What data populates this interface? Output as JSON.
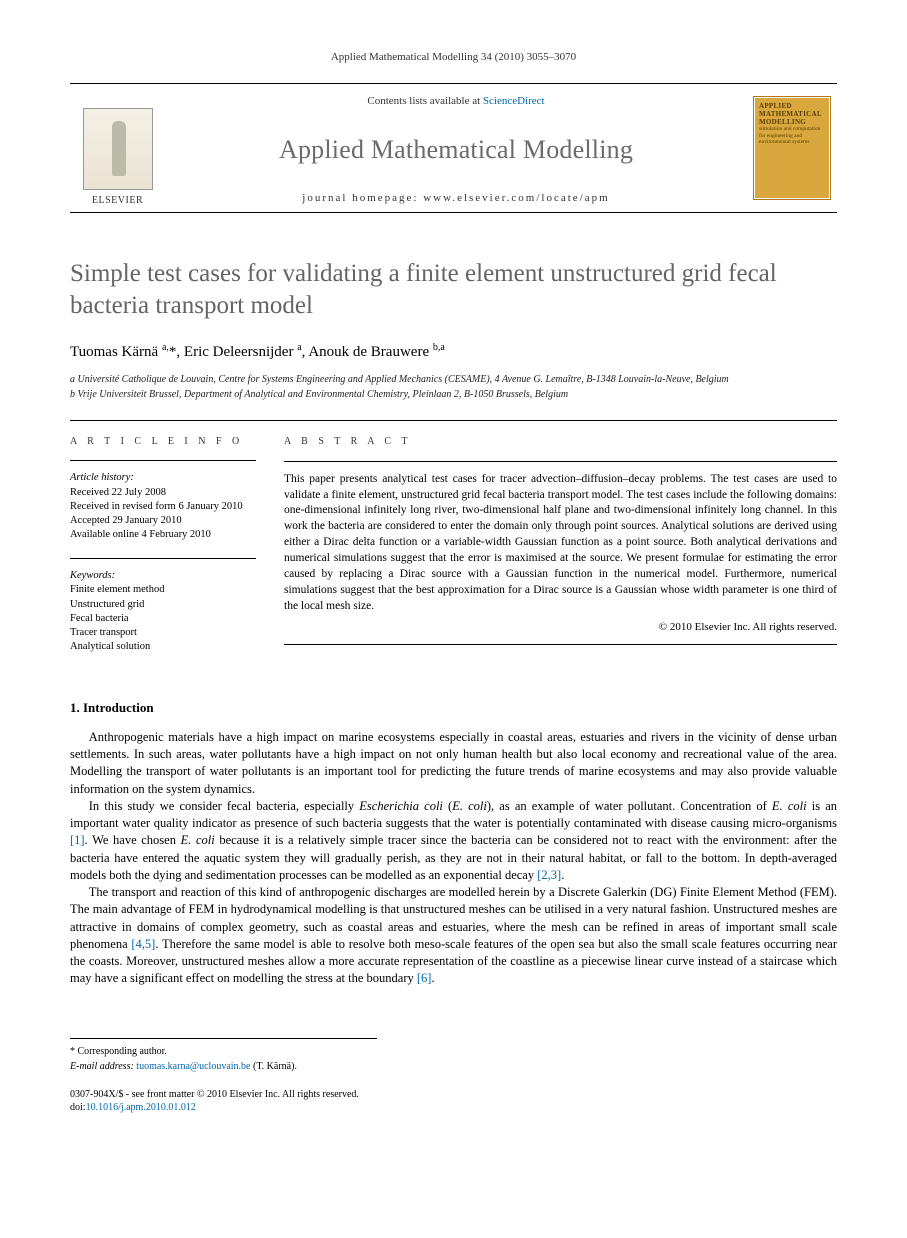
{
  "running_head": "Applied Mathematical Modelling 34 (2010) 3055–3070",
  "masthead": {
    "contents_prefix": "Contents lists available at ",
    "contents_link": "ScienceDirect",
    "publisher": "ELSEVIER",
    "journal": "Applied Mathematical Modelling",
    "homepage_label": "journal homepage: www.elsevier.com/locate/apm",
    "cover": {
      "title": "APPLIED MATHEMATICAL MODELLING",
      "subtitle": "simulation and computation for engineering and environmental systems"
    }
  },
  "article": {
    "title": "Simple test cases for validating a finite element unstructured grid fecal bacteria transport model",
    "authors_html": "Tuomas Kärnä <sup>a,</sup>*, Eric Deleersnijder <sup>a</sup>, Anouk de Brauwere <sup>b,a</sup>",
    "affiliations": [
      "a Université Catholique de Louvain, Centre for Systems Engineering and Applied Mechanics (CESAME), 4 Avenue G. Lemaître, B-1348 Louvain-la-Neuve, Belgium",
      "b Vrije Universiteit Brussel, Department of Analytical and Environmental Chemistry, Pleinlaan 2, B-1050 Brussels, Belgium"
    ]
  },
  "info": {
    "label": "A R T I C L E   I N F O",
    "history_label": "Article history:",
    "history": [
      "Received 22 July 2008",
      "Received in revised form 6 January 2010",
      "Accepted 29 January 2010",
      "Available online 4 February 2010"
    ],
    "keywords_label": "Keywords:",
    "keywords": [
      "Finite element method",
      "Unstructured grid",
      "Fecal bacteria",
      "Tracer transport",
      "Analytical solution"
    ]
  },
  "abstract": {
    "label": "A B S T R A C T",
    "text": "This paper presents analytical test cases for tracer advection–diffusion–decay problems. The test cases are used to validate a finite element, unstructured grid fecal bacteria transport model. The test cases include the following domains: one-dimensional infinitely long river, two-dimensional half plane and two-dimensional infinitely long channel. In this work the bacteria are considered to enter the domain only through point sources. Analytical solutions are derived using either a Dirac delta function or a variable-width Gaussian function as a point source. Both analytical derivations and numerical simulations suggest that the error is maximised at the source. We present formulae for estimating the error caused by replacing a Dirac source with a Gaussian function in the numerical model. Furthermore, numerical simulations suggest that the best approximation for a Dirac source is a Gaussian whose width parameter is one third of the local mesh size.",
    "copyright": "© 2010 Elsevier Inc. All rights reserved."
  },
  "section1": {
    "heading": "1. Introduction",
    "p1": "Anthropogenic materials have a high impact on marine ecosystems especially in coastal areas, estuaries and rivers in the vicinity of dense urban settlements. In such areas, water pollutants have a high impact on not only human health but also local economy and recreational value of the area. Modelling the transport of water pollutants is an important tool for predicting the future trends of marine ecosystems and may also provide valuable information on the system dynamics.",
    "p2_html": "In this study we consider fecal bacteria, especially <em>Escherichia coli</em> (<em>E. coli</em>), as an example of water pollutant. Concentration of <em>E. coli</em> is an important water quality indicator as presence of such bacteria suggests that the water is potentially contaminated with disease causing micro-organisms <a href=\"#\">[1]</a>. We have chosen <em>E. coli</em> because it is a relatively simple tracer since the bacteria can be considered not to react with the environment: after the bacteria have entered the aquatic system they will gradually perish, as they are not in their natural habitat, or fall to the bottom. In depth-averaged models both the dying and sedimentation processes can be modelled as an exponential decay <a href=\"#\">[2,3]</a>.",
    "p3_html": "The transport and reaction of this kind of anthropogenic discharges are modelled herein by a Discrete Galerkin (DG) Finite Element Method (FEM). The main advantage of FEM in hydrodynamical modelling is that unstructured meshes can be utilised in a very natural fashion. Unstructured meshes are attractive in domains of complex geometry, such as coastal areas and estuaries, where the mesh can be refined in areas of important small scale phenomena <a href=\"#\">[4,5]</a>. Therefore the same model is able to resolve both meso-scale features of the open sea but also the small scale features occurring near the coasts. Moreover, unstructured meshes allow a more accurate representation of the coastline as a piecewise linear curve instead of a staircase which may have a significant effect on modelling the stress at the boundary <a href=\"#\">[6]</a>."
  },
  "footnotes": {
    "corr": "* Corresponding author.",
    "email_label": "E-mail address: ",
    "email": "tuomas.karna@uclouvain.be",
    "email_suffix": " (T. Kärnä)."
  },
  "footer": {
    "line1": "0307-904X/$ - see front matter © 2010 Elsevier Inc. All rights reserved.",
    "doi_label": "doi:",
    "doi": "10.1016/j.apm.2010.01.012"
  }
}
